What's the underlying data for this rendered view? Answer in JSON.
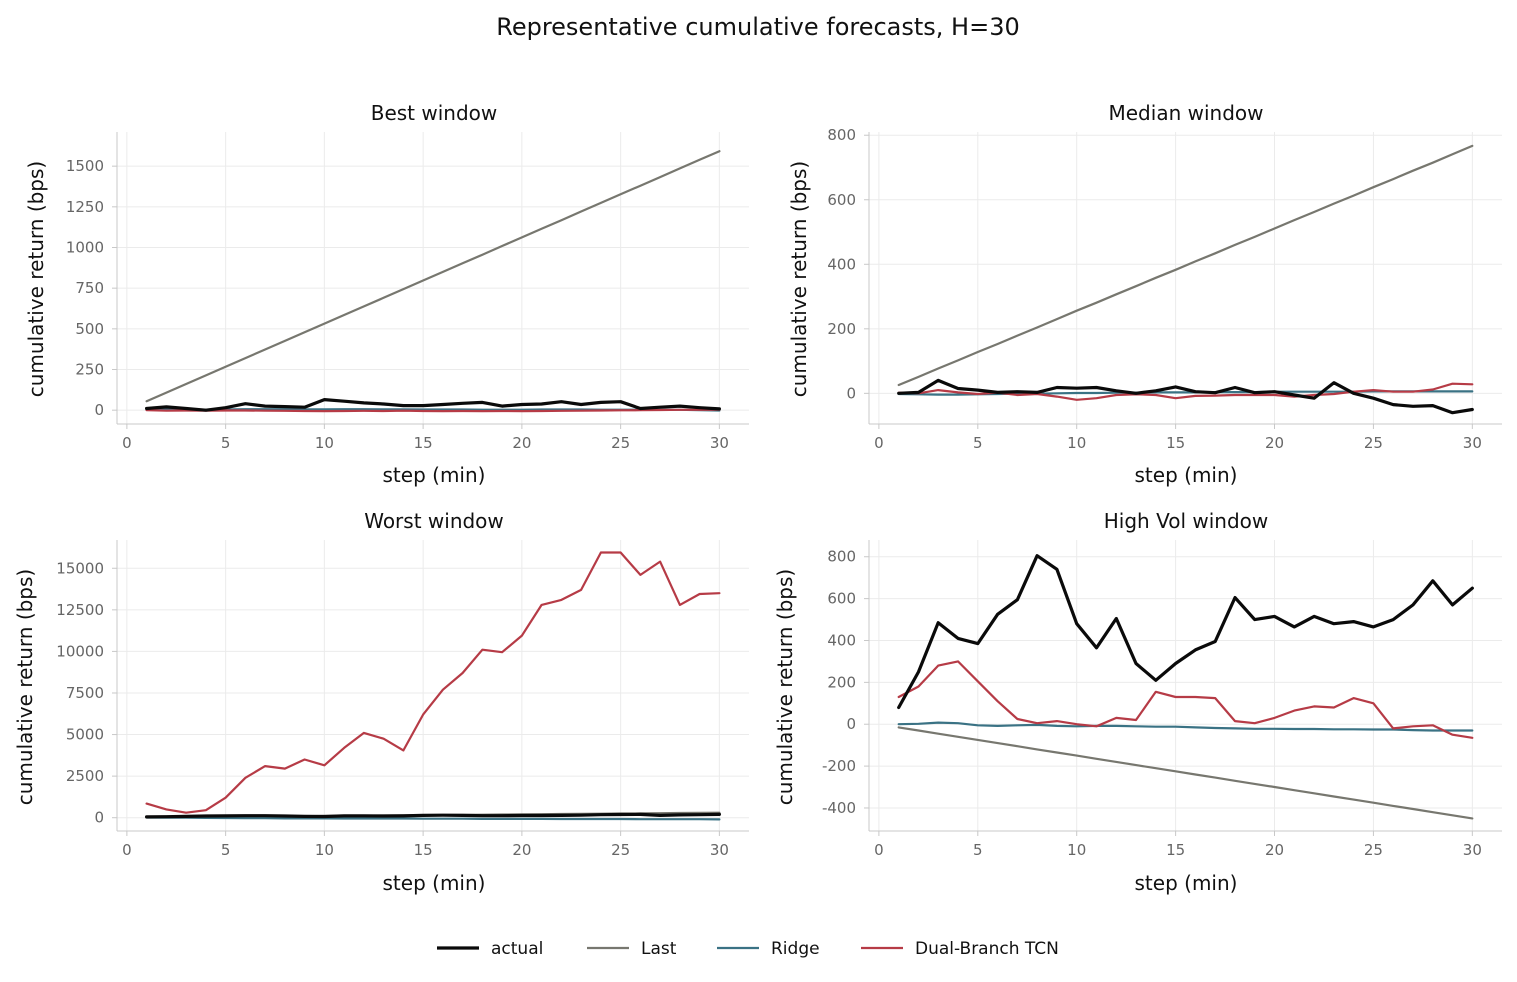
{
  "figure": {
    "title": "Representative cumulative forecasts, H=30"
  },
  "legend": {
    "placement": "bottom-center",
    "items": [
      {
        "key": "actual",
        "label": "actual",
        "color": "#0a0a0a",
        "width": 3.2
      },
      {
        "key": "last",
        "label": "Last",
        "color": "#77776f",
        "width": 2.2
      },
      {
        "key": "ridge",
        "label": "Ridge",
        "color": "#3a7284",
        "width": 2.2
      },
      {
        "key": "tcn",
        "label": "Dual-Branch TCN",
        "color": "#b63b46",
        "width": 2.2
      }
    ]
  },
  "chart_data": [
    {
      "type": "line",
      "title": "Best window",
      "xlabel": "step (min)",
      "ylabel": "cumulative return (bps)",
      "xlim": [
        -0.5,
        31.5
      ],
      "ylim": [
        -85,
        1710
      ],
      "xticks": [
        0,
        5,
        10,
        15,
        20,
        25,
        30
      ],
      "yticks": [
        0,
        250,
        500,
        750,
        1000,
        1250,
        1500
      ],
      "grid": true,
      "x": [
        1,
        2,
        3,
        4,
        5,
        6,
        7,
        8,
        9,
        10,
        11,
        12,
        13,
        14,
        15,
        16,
        17,
        18,
        19,
        20,
        21,
        22,
        23,
        24,
        25,
        26,
        27,
        28,
        29,
        30
      ],
      "series": [
        {
          "key": "last",
          "values": [
            55,
            108,
            161,
            214,
            267,
            320,
            373,
            426,
            479,
            532,
            585,
            638,
            691,
            744,
            797,
            850,
            903,
            956,
            1009,
            1062,
            1115,
            1168,
            1221,
            1274,
            1327,
            1380,
            1433,
            1486,
            1539,
            1592
          ]
        },
        {
          "key": "ridge",
          "values": [
            5,
            5,
            4,
            3,
            4,
            6,
            6,
            6,
            5,
            5,
            6,
            6,
            5,
            5,
            4,
            4,
            4,
            3,
            3,
            3,
            4,
            4,
            4,
            3,
            3,
            3,
            2,
            2,
            0,
            -2
          ]
        },
        {
          "key": "tcn",
          "values": [
            0,
            -3,
            -2,
            -3,
            -2,
            -2,
            -3,
            -4,
            -5,
            -6,
            -5,
            -4,
            -5,
            -3,
            -5,
            -6,
            -5,
            -6,
            -5,
            -6,
            -5,
            -4,
            -3,
            -2,
            -1,
            0,
            1,
            2,
            2,
            3
          ]
        },
        {
          "key": "actual",
          "values": [
            10,
            20,
            10,
            0,
            15,
            40,
            25,
            22,
            18,
            65,
            55,
            45,
            38,
            28,
            28,
            35,
            42,
            48,
            25,
            35,
            38,
            52,
            35,
            48,
            52,
            10,
            18,
            25,
            15,
            8
          ]
        }
      ]
    },
    {
      "type": "line",
      "title": "Median window",
      "xlabel": "step (min)",
      "ylabel": "cumulative return (bps)",
      "xlim": [
        -0.5,
        31.5
      ],
      "ylim": [
        -95,
        810
      ],
      "xticks": [
        0,
        5,
        10,
        15,
        20,
        25,
        30
      ],
      "yticks": [
        0,
        200,
        400,
        600,
        800
      ],
      "grid": true,
      "x": [
        1,
        2,
        3,
        4,
        5,
        6,
        7,
        8,
        9,
        10,
        11,
        12,
        13,
        14,
        15,
        16,
        17,
        18,
        19,
        20,
        21,
        22,
        23,
        24,
        25,
        26,
        27,
        28,
        29,
        30
      ],
      "series": [
        {
          "key": "last",
          "values": [
            26,
            51,
            77,
            102,
            128,
            153,
            179,
            204,
            230,
            256,
            281,
            307,
            332,
            358,
            383,
            409,
            434,
            460,
            485,
            511,
            537,
            562,
            588,
            613,
            639,
            664,
            690,
            715,
            741,
            767
          ]
        },
        {
          "key": "ridge",
          "values": [
            -2,
            -3,
            -4,
            -4,
            -3,
            -2,
            -1,
            -1,
            0,
            1,
            1,
            2,
            2,
            3,
            3,
            3,
            4,
            4,
            4,
            5,
            5,
            5,
            5,
            5,
            6,
            6,
            6,
            6,
            6,
            6
          ]
        },
        {
          "key": "tcn",
          "values": [
            2,
            0,
            10,
            3,
            -2,
            2,
            -5,
            -2,
            -10,
            -20,
            -15,
            -5,
            -3,
            -5,
            -15,
            -8,
            -7,
            -5,
            -5,
            -5,
            -10,
            -5,
            -2,
            5,
            10,
            5,
            5,
            12,
            30,
            28
          ]
        },
        {
          "key": "actual",
          "values": [
            0,
            3,
            40,
            15,
            10,
            3,
            5,
            3,
            18,
            16,
            18,
            8,
            0,
            8,
            20,
            5,
            2,
            18,
            2,
            5,
            -5,
            -15,
            33,
            0,
            -15,
            -35,
            -40,
            -38,
            -60,
            -50
          ]
        }
      ]
    },
    {
      "type": "line",
      "title": "Worst window",
      "xlabel": "step (min)",
      "ylabel": "cumulative return (bps)",
      "xlim": [
        -0.5,
        31.5
      ],
      "ylim": [
        -800,
        16700
      ],
      "xticks": [
        0,
        5,
        10,
        15,
        20,
        25,
        30
      ],
      "yticks": [
        0,
        2500,
        5000,
        7500,
        10000,
        12500,
        15000
      ],
      "grid": true,
      "x": [
        1,
        2,
        3,
        4,
        5,
        6,
        7,
        8,
        9,
        10,
        11,
        12,
        13,
        14,
        15,
        16,
        17,
        18,
        19,
        20,
        21,
        22,
        23,
        24,
        25,
        26,
        27,
        28,
        29,
        30
      ],
      "series": [
        {
          "key": "last",
          "values": [
            10,
            20,
            30,
            40,
            50,
            60,
            70,
            80,
            90,
            100,
            110,
            120,
            130,
            140,
            150,
            160,
            170,
            180,
            190,
            200,
            210,
            220,
            230,
            240,
            250,
            260,
            270,
            280,
            290,
            300
          ]
        },
        {
          "key": "ridge",
          "values": [
            10,
            5,
            0,
            -10,
            -20,
            -30,
            -30,
            -40,
            -40,
            -40,
            -50,
            -50,
            -50,
            -50,
            -60,
            -60,
            -60,
            -70,
            -70,
            -70,
            -70,
            -80,
            -80,
            -80,
            -80,
            -90,
            -90,
            -90,
            -90,
            -100
          ]
        },
        {
          "key": "tcn",
          "values": [
            850,
            500,
            300,
            450,
            1200,
            2400,
            3100,
            2950,
            3500,
            3150,
            4200,
            5100,
            4750,
            4050,
            6200,
            7700,
            8700,
            10100,
            9950,
            10950,
            12800,
            13100,
            13700,
            15950,
            15950,
            14600,
            15400,
            12800,
            13450,
            13500
          ]
        },
        {
          "key": "actual",
          "values": [
            50,
            60,
            80,
            100,
            110,
            120,
            120,
            100,
            80,
            70,
            110,
            110,
            100,
            110,
            140,
            150,
            140,
            120,
            120,
            130,
            130,
            140,
            150,
            180,
            190,
            200,
            140,
            170,
            180,
            200
          ]
        }
      ]
    },
    {
      "type": "line",
      "title": "High Vol window",
      "xlabel": "step (min)",
      "ylabel": "cumulative return (bps)",
      "xlim": [
        -0.5,
        31.5
      ],
      "ylim": [
        -510,
        880
      ],
      "xticks": [
        0,
        5,
        10,
        15,
        20,
        25,
        30
      ],
      "yticks": [
        -400,
        -200,
        0,
        200,
        400,
        600,
        800
      ],
      "grid": true,
      "x": [
        1,
        2,
        3,
        4,
        5,
        6,
        7,
        8,
        9,
        10,
        11,
        12,
        13,
        14,
        15,
        16,
        17,
        18,
        19,
        20,
        21,
        22,
        23,
        24,
        25,
        26,
        27,
        28,
        29,
        30
      ],
      "series": [
        {
          "key": "last",
          "values": [
            -15,
            -30,
            -45,
            -60,
            -75,
            -90,
            -105,
            -120,
            -135,
            -150,
            -165,
            -180,
            -195,
            -210,
            -225,
            -240,
            -255,
            -270,
            -285,
            -300,
            -315,
            -330,
            -345,
            -360,
            -375,
            -390,
            -405,
            -420,
            -435,
            -450
          ]
        },
        {
          "key": "ridge",
          "values": [
            0,
            2,
            8,
            5,
            -5,
            -8,
            -5,
            -3,
            -8,
            -10,
            -8,
            -8,
            -10,
            -12,
            -12,
            -15,
            -18,
            -20,
            -22,
            -22,
            -23,
            -23,
            -24,
            -24,
            -25,
            -25,
            -28,
            -30,
            -30,
            -30
          ]
        },
        {
          "key": "tcn",
          "values": [
            130,
            180,
            280,
            300,
            205,
            110,
            25,
            5,
            15,
            0,
            -10,
            30,
            20,
            155,
            130,
            130,
            125,
            15,
            5,
            30,
            65,
            85,
            80,
            125,
            100,
            -20,
            -10,
            -5,
            -50,
            -65
          ]
        },
        {
          "key": "actual",
          "values": [
            80,
            250,
            485,
            410,
            385,
            525,
            595,
            805,
            740,
            480,
            365,
            505,
            290,
            210,
            290,
            355,
            395,
            605,
            500,
            515,
            465,
            515,
            480,
            490,
            465,
            500,
            570,
            685,
            570,
            650
          ]
        }
      ]
    }
  ]
}
